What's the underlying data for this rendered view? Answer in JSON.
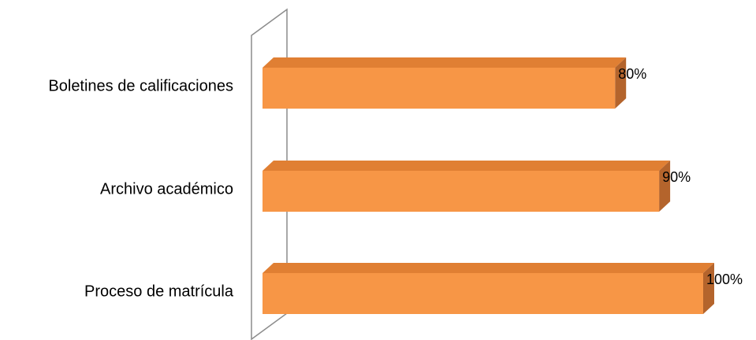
{
  "chart_data": {
    "type": "bar",
    "orientation": "horizontal",
    "style": "3d",
    "categories": [
      "Boletines de calificaciones",
      "Archivo académico",
      "Proceso de matrícula"
    ],
    "values": [
      80,
      90,
      100
    ],
    "data_labels": [
      "80%",
      "90%",
      "100%"
    ],
    "xlim": [
      0,
      100
    ],
    "grid": false,
    "legend": "none",
    "colors": {
      "bar_front": "#F79646",
      "bar_top": "#E07F33",
      "bar_side": "#B4642C",
      "axis_wall": "#8C8C8C"
    }
  }
}
